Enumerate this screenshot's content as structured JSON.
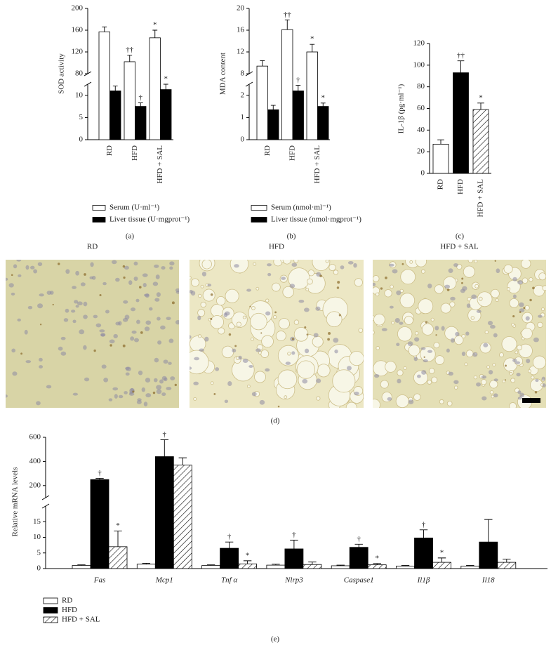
{
  "chart_data": [
    {
      "type": "bar",
      "panel_label": "(a)",
      "y_label": "SOD activity",
      "categories": [
        "RD",
        "HFD",
        "HFD + SAL"
      ],
      "series": [
        {
          "name": "Serum (U·ml⁻¹)",
          "color": "#ffffff",
          "axis": "y2",
          "values": [
            157,
            102,
            146
          ],
          "errors": [
            9,
            12,
            14
          ],
          "significance": [
            null,
            "††",
            "*"
          ]
        },
        {
          "name": "Liver tissue (U·mgprot⁻¹)",
          "color": "#000000",
          "values": [
            11,
            7.5,
            11.3
          ],
          "errors": [
            1.1,
            0.8,
            1.2
          ],
          "significance": [
            null,
            "†",
            "*"
          ]
        }
      ],
      "ylim": [
        0,
        12.5
      ],
      "yticks": [
        0,
        5,
        10
      ],
      "y2lim": [
        80,
        200
      ],
      "y2ticks": [
        80,
        120,
        160,
        200
      ]
    },
    {
      "type": "bar",
      "panel_label": "(b)",
      "y_label": "MDA content",
      "categories": [
        "RD",
        "HFD",
        "HFD + SAL"
      ],
      "series": [
        {
          "name": "Serum (nmol·ml⁻¹)",
          "color": "#ffffff",
          "axis": "y2",
          "values": [
            9.4,
            16.1,
            12
          ],
          "errors": [
            1,
            1.8,
            1.4
          ],
          "significance": [
            null,
            "††",
            "*"
          ]
        },
        {
          "name": "Liver tissue (nmol·mgprot⁻¹)",
          "color": "#000000",
          "values": [
            1.35,
            2.2,
            1.5
          ],
          "errors": [
            0.2,
            0.25,
            0.15
          ],
          "significance": [
            null,
            "†",
            "*"
          ]
        }
      ],
      "ylim": [
        0,
        2.5
      ],
      "yticks": [
        0,
        1,
        2
      ],
      "y2lim": [
        8,
        20
      ],
      "y2ticks": [
        8,
        12,
        16,
        20
      ]
    },
    {
      "type": "bar",
      "panel_label": "(c)",
      "y_label": "IL-1β (pg·ml⁻¹)",
      "categories": [
        "RD",
        "HFD",
        "HFD + SAL"
      ],
      "values": [
        27,
        93,
        59
      ],
      "errors": [
        4,
        11,
        6
      ],
      "significance": [
        null,
        "††",
        "*"
      ],
      "colors": [
        "#ffffff",
        "#000000",
        "#ffffff"
      ],
      "hatched": [
        false,
        false,
        true
      ],
      "ylim": [
        0,
        120
      ],
      "yticks": [
        0,
        20,
        40,
        60,
        80,
        100,
        120
      ]
    },
    {
      "type": "bar",
      "panel_label": "(e)",
      "y_label": "Relative mRNA levels",
      "categories": [
        "Fas",
        "Mcp1",
        "Tnf α",
        "Nlrp3",
        "Caspase1",
        "Il1β",
        "Il18"
      ],
      "series": [
        {
          "name": "RD",
          "color": "#ffffff",
          "values": [
            1,
            1.4,
            1,
            1.1,
            0.9,
            0.8,
            0.8
          ],
          "errors": [
            0.2,
            0.3,
            0.2,
            0.3,
            0.2,
            0.2,
            0.2
          ]
        },
        {
          "name": "HFD",
          "color": "#000000",
          "values": [
            250,
            440,
            6.5,
            6.3,
            6.8,
            9.8,
            8.5
          ],
          "errors": [
            10,
            140,
            2,
            2.8,
            1,
            2.6,
            7.2
          ],
          "significance": [
            "†",
            "†",
            "†",
            "†",
            "†",
            "†",
            null
          ]
        },
        {
          "name": "HFD + SAL",
          "color": "#ffffff",
          "hatched": true,
          "values": [
            7,
            370,
            1.5,
            1.3,
            1.2,
            2,
            2
          ],
          "errors": [
            5,
            60,
            1,
            0.8,
            0.4,
            1.4,
            1
          ],
          "significance": [
            "*",
            null,
            "*",
            null,
            "*",
            "*",
            null
          ]
        }
      ],
      "ylim": [
        0,
        20
      ],
      "yticks": [
        0,
        5,
        10,
        15
      ],
      "y2lim": [
        100,
        600
      ],
      "y2ticks": [
        200,
        400,
        600
      ]
    }
  ],
  "micrographs": {
    "titles": [
      "RD",
      "HFD",
      "HFD + SAL"
    ],
    "panel_label": "(d)"
  }
}
